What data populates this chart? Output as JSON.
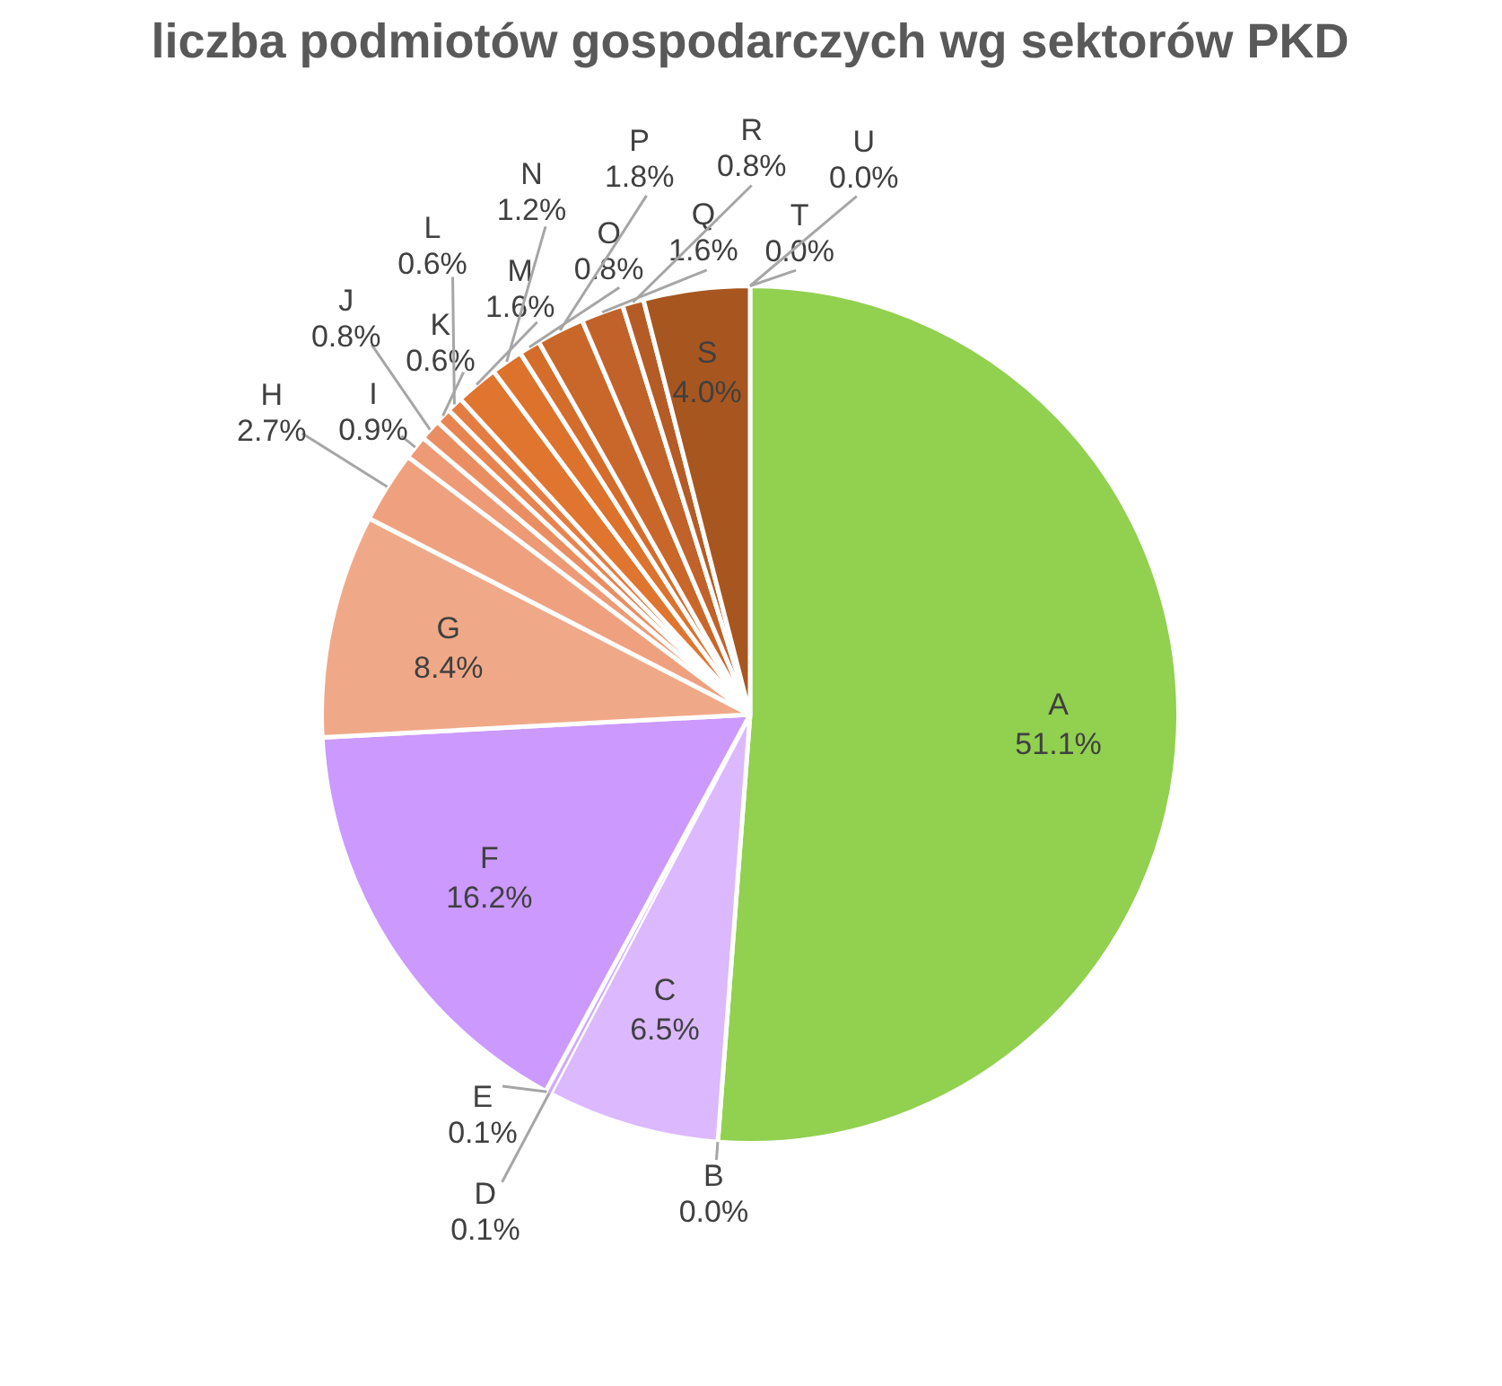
{
  "chart_data": {
    "type": "pie",
    "title": "liczba podmiotów gospodarczych wg sektorów PKD",
    "categories": [
      "A",
      "B",
      "C",
      "D",
      "E",
      "F",
      "G",
      "H",
      "I",
      "J",
      "K",
      "L",
      "M",
      "N",
      "O",
      "P",
      "Q",
      "R",
      "S",
      "T",
      "U"
    ],
    "values": [
      51.1,
      0.0,
      6.5,
      0.1,
      0.1,
      16.2,
      8.4,
      2.7,
      0.9,
      0.8,
      0.6,
      0.6,
      1.6,
      1.2,
      0.8,
      1.8,
      1.6,
      0.8,
      4.0,
      0.0,
      0.0
    ],
    "value_labels": [
      "51.1%",
      "0.0%",
      "6.5%",
      "0.1%",
      "0.1%",
      "16.2%",
      "8.4%",
      "2.7%",
      "0.9%",
      "0.8%",
      "0.6%",
      "0.6%",
      "1.6%",
      "1.2%",
      "0.8%",
      "1.8%",
      "1.6%",
      "0.8%",
      "4.0%",
      "0.0%",
      "0.0%"
    ],
    "colors": [
      "#92d050",
      "#dcbcff",
      "#dcb8ff",
      "#d0a8ff",
      "#cfa4ff",
      "#cc99ff",
      "#f0a988",
      "#efa17f",
      "#ee9a76",
      "#ea8e62",
      "#e8844f",
      "#e57c42",
      "#e0752f",
      "#dc722c",
      "#d46d2b",
      "#c9672a",
      "#c0622a",
      "#b55c26",
      "#a85620",
      "#a3521f",
      "#a0501e"
    ]
  }
}
